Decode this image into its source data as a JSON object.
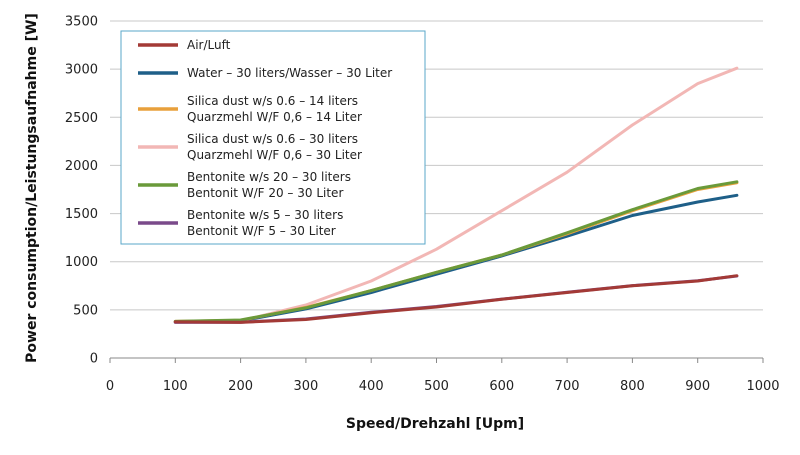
{
  "chart_data": {
    "type": "line",
    "title": "",
    "xlabel": "Speed/Drehzahl [Upm]",
    "ylabel": "Power consumption/Leistungsaufnahme [W]",
    "xlim": [
      0,
      1000
    ],
    "ylim": [
      0,
      3500
    ],
    "xticks": [
      0,
      100,
      200,
      300,
      400,
      500,
      600,
      700,
      800,
      900,
      1000
    ],
    "yticks": [
      0,
      500,
      1000,
      1500,
      2000,
      2500,
      3000,
      3500
    ],
    "grid": "horizontal",
    "legend_position": "top-left",
    "series": [
      {
        "name": "Air/Luft",
        "label_lines": [
          "Air/Luft"
        ],
        "color": "#a33a36",
        "x": [
          100,
          200,
          300,
          400,
          500,
          600,
          700,
          800,
          900,
          960
        ],
        "y": [
          375,
          370,
          400,
          470,
          530,
          610,
          680,
          750,
          800,
          855
        ]
      },
      {
        "name": "Water – 30 liters/Wasser – 30 Liter",
        "label_lines": [
          "Water – 30 liters/Wasser – 30 Liter"
        ],
        "color": "#1e5f88",
        "x": [
          100,
          200,
          300,
          400,
          500,
          600,
          700,
          800,
          900,
          960
        ],
        "y": [
          375,
          385,
          510,
          680,
          870,
          1060,
          1265,
          1480,
          1620,
          1690
        ]
      },
      {
        "name": "Silica dust w/s 0.6 – 14 liters Quarzmehl W/F 0,6 – 14 Liter",
        "label_lines": [
          "Silica dust w/s 0.6 – 14 liters",
          "Quarzmehl W/F 0,6 – 14 Liter"
        ],
        "color": "#e8a03c",
        "x": [
          100,
          200,
          300,
          400,
          500,
          600,
          700,
          800,
          900,
          960
        ],
        "y": [
          380,
          390,
          525,
          700,
          890,
          1070,
          1290,
          1530,
          1750,
          1820
        ]
      },
      {
        "name": "Silica dust w/s 0.6 – 30 liters Quarzmehl W/F 0,6 – 30 Liter",
        "label_lines": [
          "Silica dust w/s 0.6 – 30 liters",
          "Quarzmehl W/F 0,6 – 30 Liter"
        ],
        "color": "#f2b7b5",
        "x": [
          100,
          200,
          300,
          400,
          500,
          600,
          700,
          800,
          900,
          960
        ],
        "y": [
          375,
          385,
          550,
          800,
          1130,
          1530,
          1930,
          2420,
          2850,
          3010
        ]
      },
      {
        "name": "Bentonite w/s 20 – 30 liters Bentonit W/F 20 – 30 Liter",
        "label_lines": [
          "Bentonite w/s 20 – 30 liters",
          "Bentonit W/F 20 – 30 Liter"
        ],
        "color": "#6a9a3a",
        "x": [
          100,
          200,
          300,
          400,
          500,
          600,
          700,
          800,
          900,
          960
        ],
        "y": [
          380,
          395,
          520,
          700,
          890,
          1070,
          1300,
          1540,
          1760,
          1830
        ]
      },
      {
        "name": "Bentonite w/s 5 – 30 liters Bentonit W/F 5 – 30 Liter",
        "label_lines": [
          "Bentonite w/s 5 – 30 liters",
          "Bentonit W/F 5 – 30 Liter"
        ],
        "color": "#7a4a8a",
        "x": [
          100,
          200,
          300,
          400,
          500,
          600,
          700,
          800,
          900,
          960
        ],
        "y": [
          370,
          372,
          405,
          475,
          535,
          612,
          682,
          752,
          802,
          852
        ]
      }
    ]
  }
}
